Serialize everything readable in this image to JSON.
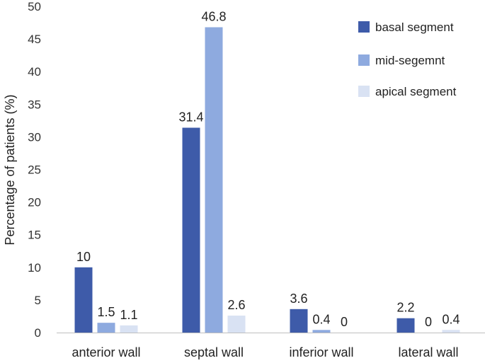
{
  "chart_data": {
    "type": "bar",
    "title": "",
    "xlabel": "",
    "ylabel": "Percentage of patients (%)",
    "ylim": [
      0,
      50
    ],
    "yticks": [
      0,
      5,
      10,
      15,
      20,
      25,
      30,
      35,
      40,
      45,
      50
    ],
    "grid": false,
    "legend_position": "top-right",
    "categories": [
      "anterior wall",
      "septal wall",
      "inferior wall",
      "lateral wall"
    ],
    "series": [
      {
        "name": "basal segment",
        "color": "#3E5BA9",
        "values": [
          10,
          31.4,
          3.6,
          2.2
        ],
        "labels": [
          "10",
          "31.4",
          "3.6",
          "2.2"
        ]
      },
      {
        "name": "mid-segemnt",
        "color": "#8EAADF",
        "values": [
          1.5,
          46.8,
          0.4,
          0
        ],
        "labels": [
          "1.5",
          "46.8",
          "0.4",
          "0"
        ]
      },
      {
        "name": "apical segment",
        "color": "#D9E2F3",
        "values": [
          1.1,
          2.6,
          0,
          0.4
        ],
        "labels": [
          "1.1",
          "2.6",
          "0",
          "0.4"
        ]
      }
    ]
  }
}
